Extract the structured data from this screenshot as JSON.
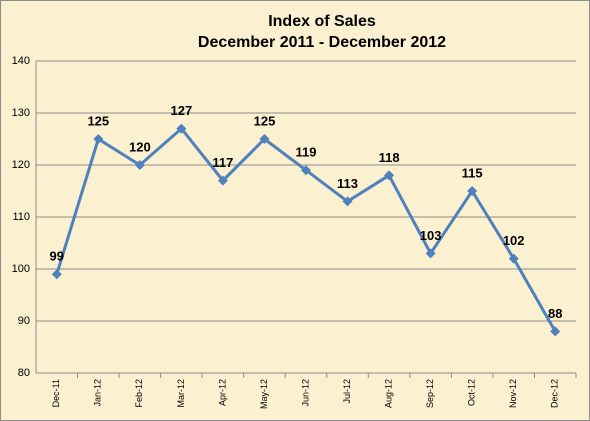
{
  "chart_data": {
    "type": "line",
    "title": "Index of Sales",
    "subtitle": "December 2011 - December 2012",
    "categories": [
      "Dec-11",
      "Jan-12",
      "Feb-12",
      "Mar-12",
      "Apr-12",
      "May-12",
      "Jun-12",
      "Jul-12",
      "Aug-12",
      "Sep-12",
      "Oct-12",
      "Nov-12",
      "Dec-12"
    ],
    "values": [
      99,
      125,
      120,
      127,
      117,
      125,
      119,
      113,
      118,
      103,
      115,
      102,
      88
    ],
    "color": "#4f81bd",
    "ylim": [
      80,
      140
    ],
    "yticks": [
      80,
      90,
      100,
      110,
      120,
      130,
      140
    ],
    "grid": true
  }
}
